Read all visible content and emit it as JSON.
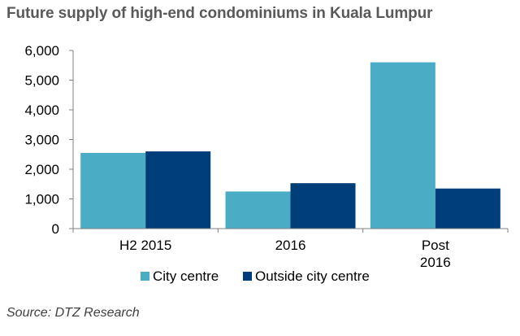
{
  "title": "Future supply of high-end condominiums in Kuala Lumpur",
  "source": "Source: DTZ Research",
  "colors": {
    "city_centre": "#4BACC6",
    "outside_city_centre": "#003E7A",
    "title": "#595959",
    "axis": "#808080"
  },
  "chart_data": {
    "type": "bar",
    "title": "Future supply of high-end condominiums in Kuala Lumpur",
    "categories": [
      "H2 2015",
      "2016",
      "Post 2016"
    ],
    "category_lines": [
      [
        "H2 2015"
      ],
      [
        "2016"
      ],
      [
        "Post",
        "2016"
      ]
    ],
    "series": [
      {
        "name": "City centre",
        "values": [
          2550,
          1250,
          5600
        ]
      },
      {
        "name": "Outside city centre",
        "values": [
          2600,
          1530,
          1350
        ]
      }
    ],
    "ylim": [
      0,
      6000
    ],
    "yticks": [
      0,
      1000,
      2000,
      3000,
      4000,
      5000,
      6000
    ],
    "ytick_labels": [
      "0",
      "1,000",
      "2,000",
      "3,000",
      "4,000",
      "5,000",
      "6,000"
    ],
    "xlabel": "",
    "ylabel": "",
    "grid": false,
    "legend_position": "bottom"
  }
}
